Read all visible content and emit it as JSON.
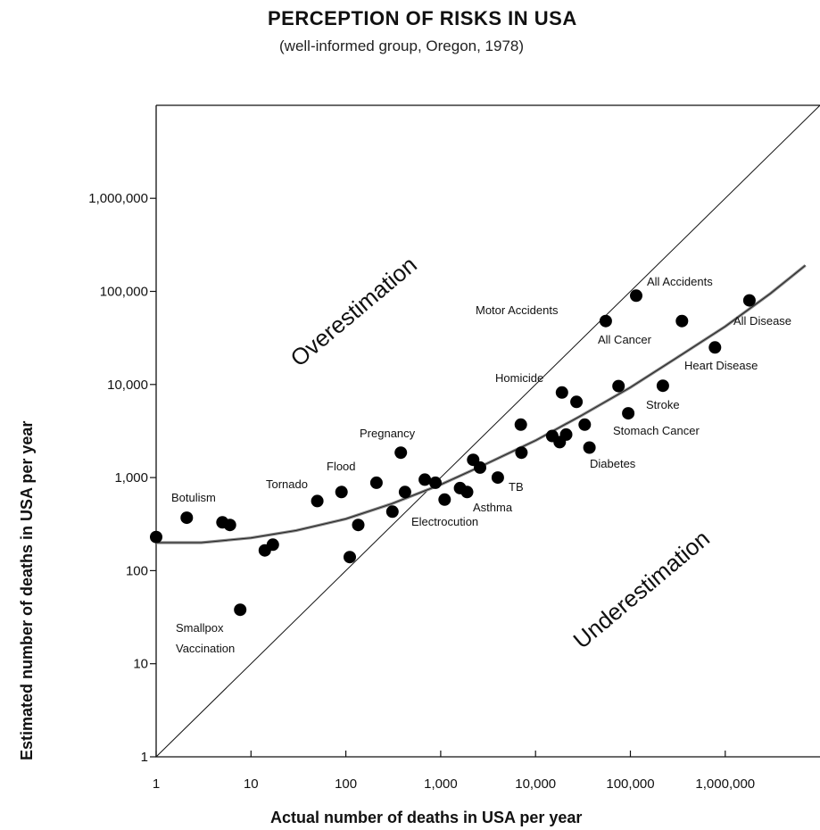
{
  "title": "PERCEPTION OF RISKS IN USA",
  "subtitle": "(well-informed group, Oregon, 1978)",
  "chart_data": {
    "type": "scatter",
    "title": "PERCEPTION OF RISKS IN USA",
    "subtitle": "(well-informed group, Oregon, 1978)",
    "xlabel": "Actual number of deaths in USA per year",
    "ylabel": "Estimated number of deaths in USA per year",
    "x_scale": "log",
    "y_scale": "log",
    "xlim": [
      1,
      7000000
    ],
    "ylim": [
      1,
      10000000
    ],
    "x_ticks": [
      {
        "value": 1,
        "label": "1"
      },
      {
        "value": 10,
        "label": "10"
      },
      {
        "value": 100,
        "label": "100"
      },
      {
        "value": 1000,
        "label": "1,000"
      },
      {
        "value": 10000,
        "label": "10,000"
      },
      {
        "value": 100000,
        "label": "100,000"
      },
      {
        "value": 1000000,
        "label": "1,000,000"
      }
    ],
    "y_ticks": [
      {
        "value": 1,
        "label": "1"
      },
      {
        "value": 10,
        "label": "10"
      },
      {
        "value": 100,
        "label": "100"
      },
      {
        "value": 1000,
        "label": "1,000"
      },
      {
        "value": 10000,
        "label": "10,000"
      },
      {
        "value": 100000,
        "label": "100,000"
      },
      {
        "value": 1000000,
        "label": "1,000,000"
      }
    ],
    "region_labels": [
      "Overestimation",
      "Underestimation"
    ],
    "reference_line": {
      "type": "identity",
      "description": "estimated = actual"
    },
    "fit_curve": [
      {
        "x": 1,
        "y": 200
      },
      {
        "x": 3,
        "y": 200
      },
      {
        "x": 10,
        "y": 225
      },
      {
        "x": 30,
        "y": 270
      },
      {
        "x": 100,
        "y": 360
      },
      {
        "x": 300,
        "y": 520
      },
      {
        "x": 1000,
        "y": 840
      },
      {
        "x": 3000,
        "y": 1400
      },
      {
        "x": 10000,
        "y": 2500
      },
      {
        "x": 30000,
        "y": 4600
      },
      {
        "x": 100000,
        "y": 9300
      },
      {
        "x": 300000,
        "y": 19000
      },
      {
        "x": 1000000,
        "y": 42000
      },
      {
        "x": 3000000,
        "y": 95000
      },
      {
        "x": 7000000,
        "y": 190000
      }
    ],
    "points": [
      {
        "x": 1,
        "y": 230,
        "label": ""
      },
      {
        "x": 2.1,
        "y": 370,
        "label": "Botulism"
      },
      {
        "x": 5,
        "y": 330,
        "label": ""
      },
      {
        "x": 6,
        "y": 310,
        "label": ""
      },
      {
        "x": 7.7,
        "y": 38,
        "label": "Smallpox Vaccination"
      },
      {
        "x": 14,
        "y": 165,
        "label": ""
      },
      {
        "x": 17,
        "y": 190,
        "label": ""
      },
      {
        "x": 50,
        "y": 560,
        "label": "Tornado"
      },
      {
        "x": 90,
        "y": 700,
        "label": "Flood"
      },
      {
        "x": 110,
        "y": 140,
        "label": ""
      },
      {
        "x": 135,
        "y": 310,
        "label": ""
      },
      {
        "x": 210,
        "y": 880,
        "label": ""
      },
      {
        "x": 310,
        "y": 430,
        "label": ""
      },
      {
        "x": 380,
        "y": 1850,
        "label": "Pregnancy"
      },
      {
        "x": 420,
        "y": 700,
        "label": ""
      },
      {
        "x": 680,
        "y": 950,
        "label": ""
      },
      {
        "x": 880,
        "y": 880,
        "label": ""
      },
      {
        "x": 1100,
        "y": 580,
        "label": "Electrocution"
      },
      {
        "x": 1600,
        "y": 770,
        "label": ""
      },
      {
        "x": 1900,
        "y": 700,
        "label": "Asthma"
      },
      {
        "x": 2200,
        "y": 1550,
        "label": ""
      },
      {
        "x": 2600,
        "y": 1280,
        "label": ""
      },
      {
        "x": 4000,
        "y": 1000,
        "label": "TB"
      },
      {
        "x": 7000,
        "y": 3700,
        "label": ""
      },
      {
        "x": 7100,
        "y": 1850,
        "label": ""
      },
      {
        "x": 15000,
        "y": 2800,
        "label": ""
      },
      {
        "x": 18000,
        "y": 2400,
        "label": ""
      },
      {
        "x": 19000,
        "y": 8200,
        "label": "Homicide"
      },
      {
        "x": 21000,
        "y": 2900,
        "label": ""
      },
      {
        "x": 27000,
        "y": 6500,
        "label": ""
      },
      {
        "x": 33000,
        "y": 3700,
        "label": ""
      },
      {
        "x": 37000,
        "y": 2100,
        "label": "Diabetes"
      },
      {
        "x": 55000,
        "y": 48000,
        "label": "Motor Accidents"
      },
      {
        "x": 75000,
        "y": 9600,
        "label": ""
      },
      {
        "x": 95000,
        "y": 4900,
        "label": "Stomach Cancer"
      },
      {
        "x": 115000,
        "y": 90000,
        "label": "All Accidents"
      },
      {
        "x": 220000,
        "y": 9700,
        "label": "Stroke"
      },
      {
        "x": 350000,
        "y": 48000,
        "label": "All Cancer"
      },
      {
        "x": 780000,
        "y": 25000,
        "label": "Heart Disease"
      },
      {
        "x": 1800000,
        "y": 80000,
        "label": "All Disease"
      }
    ],
    "grid": false,
    "legend": "none"
  },
  "labels": {
    "botulism": "Botulism",
    "smallpox1": "Smallpox",
    "smallpox2": "Vaccination",
    "tornado": "Tornado",
    "flood": "Flood",
    "pregnancy": "Pregnancy",
    "electrocution": "Electrocution",
    "asthma": "Asthma",
    "tb": "TB",
    "homicide": "Homicide",
    "diabetes": "Diabetes",
    "motor": "Motor Accidents",
    "all_accidents": "All Accidents",
    "all_cancer": "All Cancer",
    "all_disease": "All Disease",
    "heart": "Heart Disease",
    "stroke": "Stroke",
    "stomach": "Stomach Cancer",
    "over": "Overestimation",
    "under": "Underestimation"
  }
}
